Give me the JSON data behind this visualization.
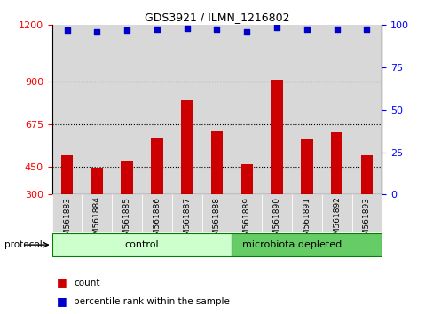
{
  "title": "GDS3921 / ILMN_1216802",
  "samples": [
    "GSM561883",
    "GSM561884",
    "GSM561885",
    "GSM561886",
    "GSM561887",
    "GSM561888",
    "GSM561889",
    "GSM561890",
    "GSM561891",
    "GSM561892",
    "GSM561893"
  ],
  "bar_values": [
    510,
    445,
    475,
    600,
    800,
    635,
    460,
    910,
    595,
    630,
    510
  ],
  "percentile_values": [
    97,
    96,
    97,
    97.5,
    98,
    97.5,
    96,
    98.5,
    97.5,
    97.5,
    97.5
  ],
  "bar_color": "#cc0000",
  "dot_color": "#0000cc",
  "ylim_left": [
    300,
    1200
  ],
  "ylim_right": [
    0,
    100
  ],
  "yticks_left": [
    300,
    450,
    675,
    900,
    1200
  ],
  "yticks_right": [
    0,
    25,
    50,
    75,
    100
  ],
  "grid_values": [
    450,
    675,
    900
  ],
  "n_control": 6,
  "n_micro": 5,
  "control_color": "#ccffcc",
  "microbiota_color": "#66cc66",
  "label_count": "count",
  "label_percentile": "percentile rank within the sample",
  "protocol_label": "protocol",
  "control_label": "control",
  "microbiota_label": "microbiota depleted",
  "col_bg_color": "#d8d8d8",
  "bar_width": 0.4
}
